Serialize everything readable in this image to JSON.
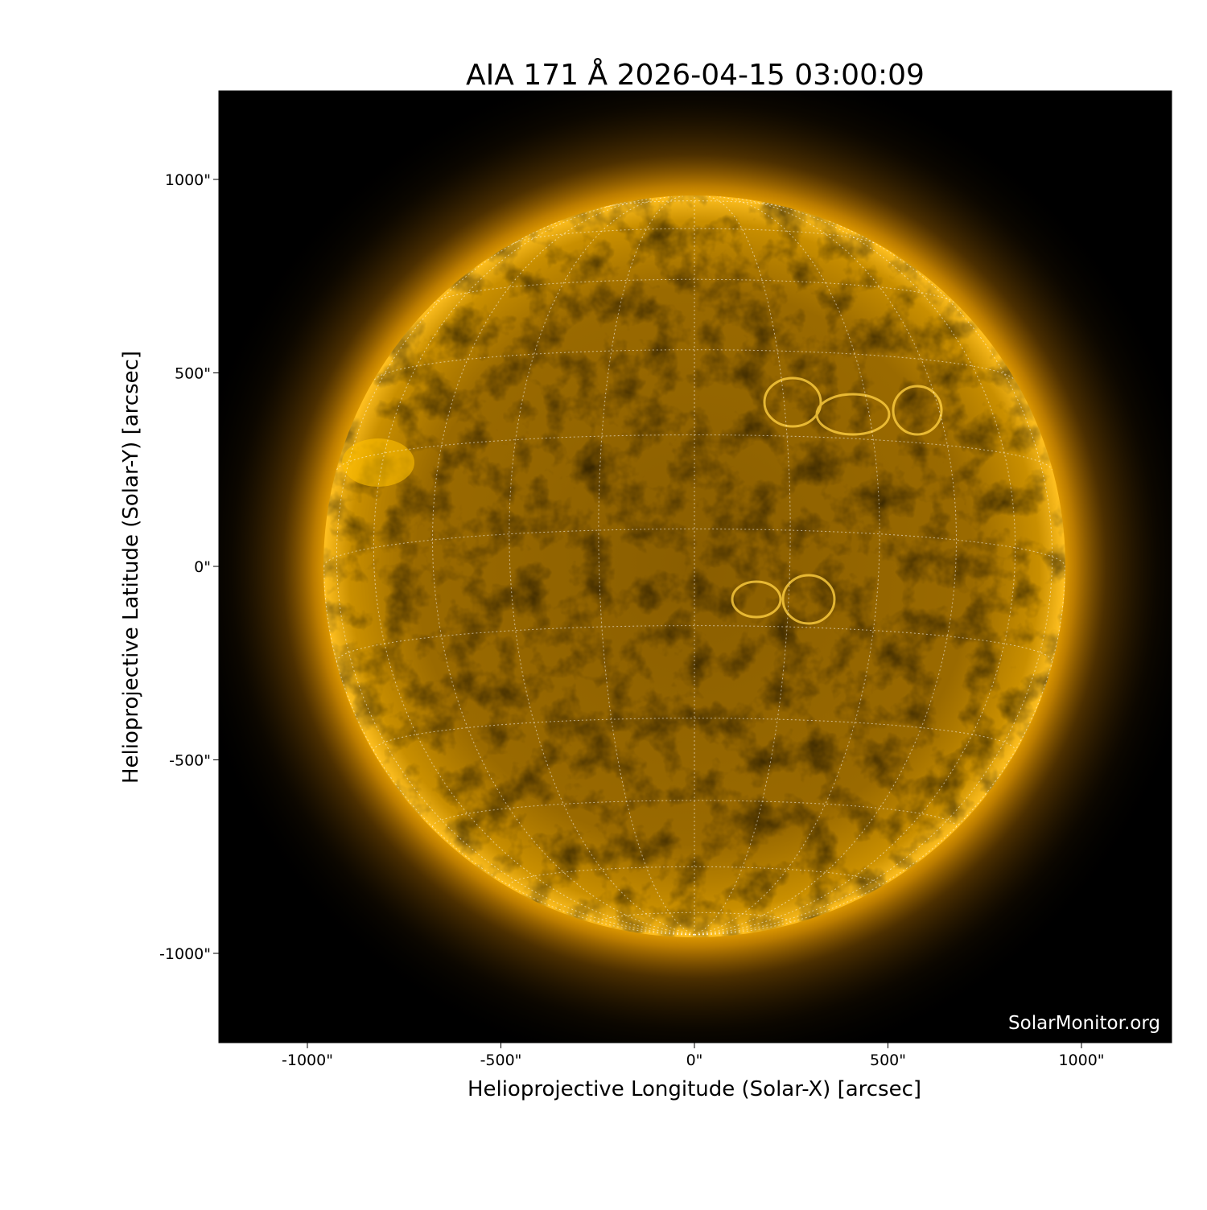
{
  "title": "AIA 171 Å 2026-04-15 03:00:09",
  "xlabel": "Helioprojective Longitude (Solar-X) [arcsec]",
  "ylabel": "Helioprojective Latitude (Solar-Y) [arcsec]",
  "watermark": "SolarMonitor.org",
  "xticks": [
    {
      "value": -1000,
      "label": "-1000\""
    },
    {
      "value": -500,
      "label": "-500\""
    },
    {
      "value": 0,
      "label": "0\""
    },
    {
      "value": 500,
      "label": "500\""
    },
    {
      "value": 1000,
      "label": "1000\""
    }
  ],
  "yticks": [
    {
      "value": 1000,
      "label": "1000\""
    },
    {
      "value": 500,
      "label": "500\""
    },
    {
      "value": 0,
      "label": "0\""
    },
    {
      "value": -500,
      "label": "-500\""
    },
    {
      "value": -1000,
      "label": "-1000\""
    }
  ],
  "xlim": [
    -1228,
    1232
  ],
  "ylim": [
    -1230,
    1230
  ],
  "solar_radius_arcsec": 957,
  "grid_spacing_deg": 15,
  "colors": {
    "disk": "#c08a00",
    "limb": "#ffb000",
    "corona": "#ff9c00",
    "background": "#000000"
  }
}
